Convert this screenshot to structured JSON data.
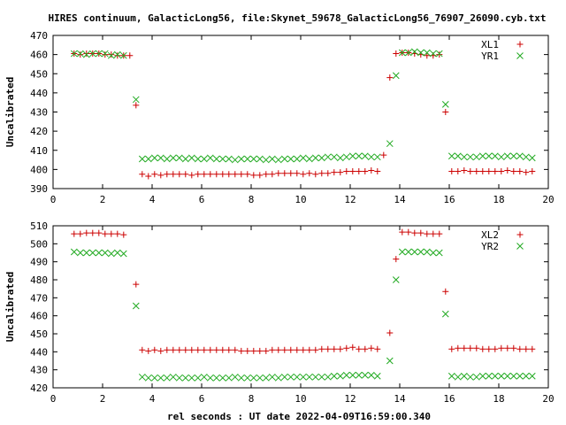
{
  "page": {
    "title": "HIRES continuum, GalacticLong56, file:Skynet_59678_GalacticLong56_76907_26090.cyb.txt",
    "xlabel": "rel seconds : UT date 2022-04-09T16:59:00.340"
  },
  "colors": {
    "series_plus": "#cc0000",
    "series_x": "#22aa22",
    "axis": "#000000"
  },
  "chart_data": [
    {
      "type": "scatter",
      "title": "HIRES continuum, GalacticLong56, file:Skynet_59678_GalacticLong56_76907_26090.cyb.txt",
      "xlabel": "",
      "ylabel": "Uncalibrated",
      "xlim": [
        0,
        20
      ],
      "ylim": [
        390,
        470
      ],
      "xticks": [
        0,
        2,
        4,
        6,
        8,
        10,
        12,
        14,
        16,
        18,
        20
      ],
      "yticks": [
        390,
        400,
        410,
        420,
        430,
        440,
        450,
        460,
        470
      ],
      "grid": false,
      "legend_position": "top-right",
      "series": [
        {
          "name": "XL1",
          "marker": "plus",
          "x": [
            0.85,
            1.1,
            1.35,
            1.6,
            1.85,
            2.1,
            2.35,
            2.6,
            2.85,
            3.1,
            3.35,
            3.6,
            3.85,
            4.1,
            4.35,
            4.6,
            4.85,
            5.1,
            5.35,
            5.6,
            5.85,
            6.1,
            6.35,
            6.6,
            6.85,
            7.1,
            7.35,
            7.6,
            7.85,
            8.1,
            8.35,
            8.6,
            8.85,
            9.1,
            9.35,
            9.6,
            9.85,
            10.1,
            10.35,
            10.6,
            10.85,
            11.1,
            11.35,
            11.6,
            11.85,
            12.1,
            12.35,
            12.6,
            12.85,
            13.1,
            13.35,
            13.6,
            13.85,
            14.1,
            14.35,
            14.6,
            14.85,
            15.1,
            15.35,
            15.6,
            15.85,
            16.1,
            16.35,
            16.6,
            16.85,
            17.1,
            17.35,
            17.6,
            17.85,
            18.1,
            18.35,
            18.6,
            18.85,
            19.1,
            19.35
          ],
          "y": [
            460.5,
            460,
            460.5,
            460.5,
            460.5,
            460,
            460,
            459.5,
            459.5,
            459.5,
            433.5,
            397.5,
            396.5,
            397.5,
            397,
            397.5,
            397.5,
            397.5,
            397.5,
            397,
            397.5,
            397.5,
            397.5,
            397.5,
            397.5,
            397.5,
            397.5,
            397.5,
            397.5,
            397,
            397,
            397.5,
            397.5,
            398,
            398,
            398,
            398,
            397.5,
            398,
            397.5,
            398,
            398,
            398.5,
            398.5,
            399,
            399,
            399,
            399,
            399.5,
            399,
            407.5,
            448,
            460.5,
            461,
            461,
            460.5,
            460,
            459.5,
            459.5,
            460,
            430,
            399,
            399,
            399.5,
            399,
            399,
            399,
            399,
            399,
            399,
            399.5,
            399,
            399,
            398.5,
            399
          ],
          "x_note": ""
        },
        {
          "name": "YR1",
          "marker": "x",
          "x": [
            0.85,
            1.1,
            1.35,
            1.6,
            1.85,
            2.1,
            2.35,
            2.6,
            2.85,
            3.35,
            3.6,
            3.85,
            4.1,
            4.35,
            4.6,
            4.85,
            5.1,
            5.35,
            5.6,
            5.85,
            6.1,
            6.35,
            6.6,
            6.85,
            7.1,
            7.35,
            7.6,
            7.85,
            8.1,
            8.35,
            8.6,
            8.85,
            9.1,
            9.35,
            9.6,
            9.85,
            10.1,
            10.35,
            10.6,
            10.85,
            11.1,
            11.35,
            11.6,
            11.85,
            12.1,
            12.35,
            12.6,
            12.85,
            13.1,
            13.6,
            13.85,
            14.1,
            14.35,
            14.6,
            14.85,
            15.1,
            15.35,
            15.6,
            15.85,
            16.1,
            16.35,
            16.6,
            16.85,
            17.1,
            17.35,
            17.6,
            17.85,
            18.1,
            18.35,
            18.6,
            18.85,
            19.1,
            19.35
          ],
          "y": [
            460.5,
            460.5,
            460,
            460.5,
            460.5,
            460.5,
            459.5,
            460,
            459.5,
            436.5,
            405.5,
            405.5,
            406,
            406,
            405.5,
            406,
            406,
            405.5,
            406,
            405.5,
            405.5,
            406,
            405.5,
            405.5,
            405.5,
            405,
            405.5,
            405.5,
            405.5,
            405.5,
            405,
            405.5,
            405,
            405.5,
            405.5,
            405.5,
            406,
            405.5,
            406,
            406,
            406.5,
            406.5,
            406,
            406.5,
            407,
            407,
            407,
            406.5,
            406.5,
            413.5,
            449,
            461,
            461,
            461.5,
            461,
            461,
            460.5,
            460.5,
            434,
            407,
            407,
            406.5,
            406.5,
            406.5,
            407,
            407,
            407,
            406.5,
            407,
            407,
            407,
            406.5,
            406
          ],
          "x_note": ""
        }
      ]
    },
    {
      "type": "scatter",
      "title": "",
      "xlabel": "rel seconds : UT date 2022-04-09T16:59:00.340",
      "ylabel": "Uncalibrated",
      "xlim": [
        0,
        20
      ],
      "ylim": [
        420,
        510
      ],
      "xticks": [
        0,
        2,
        4,
        6,
        8,
        10,
        12,
        14,
        16,
        18,
        20
      ],
      "yticks": [
        420,
        430,
        440,
        450,
        460,
        470,
        480,
        490,
        500,
        510
      ],
      "grid": false,
      "legend_position": "top-right",
      "series": [
        {
          "name": "XL2",
          "marker": "plus",
          "x": [
            0.85,
            1.1,
            1.35,
            1.6,
            1.85,
            2.1,
            2.35,
            2.6,
            2.85,
            3.35,
            3.6,
            3.85,
            4.1,
            4.35,
            4.6,
            4.85,
            5.1,
            5.35,
            5.6,
            5.85,
            6.1,
            6.35,
            6.6,
            6.85,
            7.1,
            7.35,
            7.6,
            7.85,
            8.1,
            8.35,
            8.6,
            8.85,
            9.1,
            9.35,
            9.6,
            9.85,
            10.1,
            10.35,
            10.6,
            10.85,
            11.1,
            11.35,
            11.6,
            11.85,
            12.1,
            12.35,
            12.6,
            12.85,
            13.1,
            13.6,
            13.85,
            14.1,
            14.35,
            14.6,
            14.85,
            15.1,
            15.35,
            15.6,
            15.85,
            16.1,
            16.35,
            16.6,
            16.85,
            17.1,
            17.35,
            17.6,
            17.85,
            18.1,
            18.35,
            18.6,
            18.85,
            19.1,
            19.35
          ],
          "y": [
            505.5,
            505.5,
            506,
            506,
            506,
            505.5,
            505.5,
            505.5,
            505,
            477.5,
            441,
            440.5,
            441,
            440.5,
            441,
            441,
            441,
            441,
            441,
            441,
            441,
            441,
            441,
            441,
            441,
            441,
            440.5,
            440.5,
            440.5,
            440.5,
            440.5,
            441,
            441,
            441,
            441,
            441,
            441,
            441,
            441,
            441.5,
            441.5,
            441.5,
            441.5,
            442,
            442.5,
            441.5,
            441.5,
            442,
            441.5,
            450.5,
            491.5,
            506.5,
            506.5,
            506,
            506,
            505.5,
            505.5,
            505.5,
            473.5,
            441.5,
            442,
            442,
            442,
            442,
            441.5,
            441.5,
            441.5,
            442,
            442,
            442,
            441.5,
            441.5,
            441.5
          ],
          "x_note": ""
        },
        {
          "name": "YR2",
          "marker": "x",
          "x": [
            0.85,
            1.1,
            1.35,
            1.6,
            1.85,
            2.1,
            2.35,
            2.6,
            2.85,
            3.35,
            3.6,
            3.85,
            4.1,
            4.35,
            4.6,
            4.85,
            5.1,
            5.35,
            5.6,
            5.85,
            6.1,
            6.35,
            6.6,
            6.85,
            7.1,
            7.35,
            7.6,
            7.85,
            8.1,
            8.35,
            8.6,
            8.85,
            9.1,
            9.35,
            9.6,
            9.85,
            10.1,
            10.35,
            10.6,
            10.85,
            11.1,
            11.35,
            11.6,
            11.85,
            12.1,
            12.35,
            12.6,
            12.85,
            13.1,
            13.6,
            13.85,
            14.1,
            14.35,
            14.6,
            14.85,
            15.1,
            15.35,
            15.6,
            15.85,
            16.1,
            16.35,
            16.6,
            16.85,
            17.1,
            17.35,
            17.6,
            17.85,
            18.1,
            18.35,
            18.6,
            18.85,
            19.1,
            19.35
          ],
          "y": [
            495.5,
            495,
            495,
            495,
            495,
            495,
            494.5,
            495,
            494.5,
            465.5,
            426,
            425.5,
            425.5,
            425.5,
            425.5,
            426,
            425.5,
            425.5,
            425.5,
            425.5,
            426,
            425.5,
            425.5,
            425.5,
            425.5,
            426,
            425.5,
            425.5,
            425.5,
            425.5,
            425.5,
            426,
            425.5,
            426,
            426,
            426,
            426,
            426,
            426,
            426,
            426,
            426.5,
            426.5,
            427,
            427,
            427,
            427,
            427,
            426.5,
            435,
            480,
            495.5,
            495.5,
            495.5,
            495.5,
            495.5,
            495,
            495,
            461,
            426.5,
            426,
            426.5,
            426,
            426,
            426.5,
            426.5,
            426.5,
            426.5,
            426.5,
            426.5,
            426.5,
            426.5,
            426.5
          ],
          "x_note": ""
        }
      ]
    }
  ]
}
